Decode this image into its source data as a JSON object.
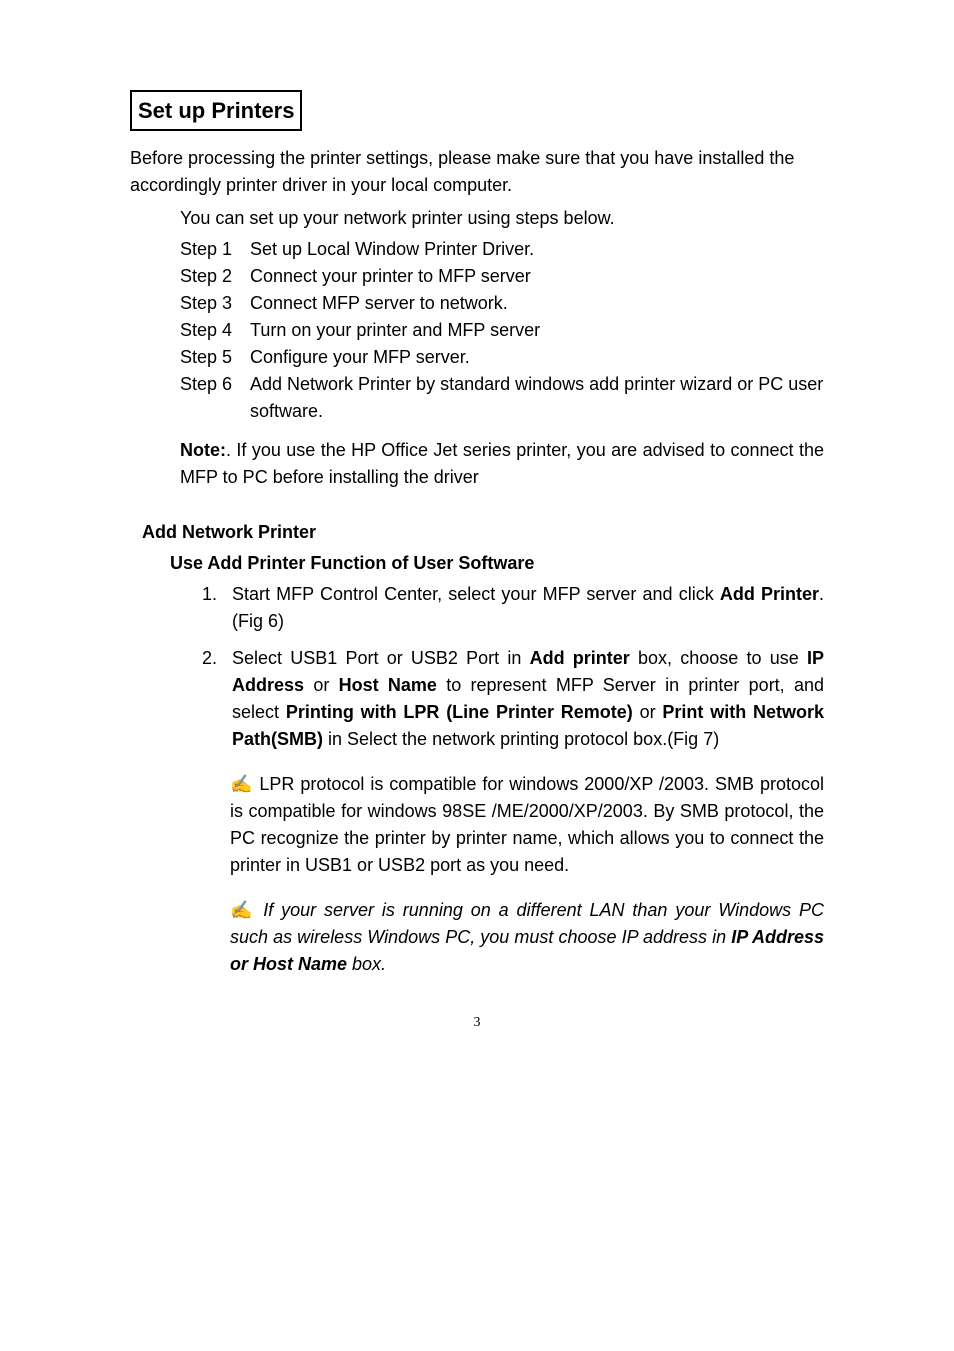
{
  "heading": "Set up Printers",
  "intro1": "Before processing the printer settings, please make sure that you have installed the accordingly printer driver in your local computer.",
  "intro2": "You can set up your network printer using steps below.",
  "steps": [
    {
      "label": "Step 1",
      "text": "Set up Local Window Printer Driver."
    },
    {
      "label": "Step 2",
      "text": "Connect your printer to MFP server"
    },
    {
      "label": "Step 3",
      "text": "Connect MFP server to network."
    },
    {
      "label": "Step 4",
      "text": "Turn on your printer and MFP server"
    },
    {
      "label": "Step 5",
      "text": "Configure your MFP server."
    },
    {
      "label": "Step 6",
      "text": "Add Network Printer by standard windows add printer wizard or PC user software."
    }
  ],
  "note_label": "Note:",
  "note_text": ". If you use the HP Office Jet series printer, you are advised to connect the MFP to PC before installing the driver",
  "section_heading": "Add Network Printer",
  "sub_heading": "Use Add Printer Function of User Software",
  "item1_a": "Start MFP Control Center, select your MFP server and click ",
  "item1_b": "Add Printer",
  "item1_c": ".(Fig 6)",
  "item2_a": "Select USB1 Port or USB2 Port in ",
  "item2_b": "Add printer",
  "item2_c": " box, choose to use ",
  "item2_d": "IP Address",
  "item2_e": " or ",
  "item2_f": "Host Name",
  "item2_g": " to represent MFP Server in printer port, and select ",
  "item2_h": "Printing with LPR (Line Printer Remote)",
  "item2_i": " or ",
  "item2_j": "Print with Network Path(SMB)",
  "item2_k": " in Select the network printing protocol box.(Fig 7)",
  "tip_icon": "✍",
  "tip1": " LPR protocol is compatible for windows 2000/XP /2003. SMB protocol is compatible for windows 98SE /ME/2000/XP/2003. By SMB protocol, the PC recognize the printer by printer name, which allows you to connect the printer in USB1 or USB2 port as you need.",
  "tip2_a": "  If your server is running on a different LAN than your Windows PC such as wireless Windows PC, you must choose IP address in ",
  "tip2_b": "IP Address or Host Name",
  "tip2_c": " box.",
  "page_number": "3"
}
